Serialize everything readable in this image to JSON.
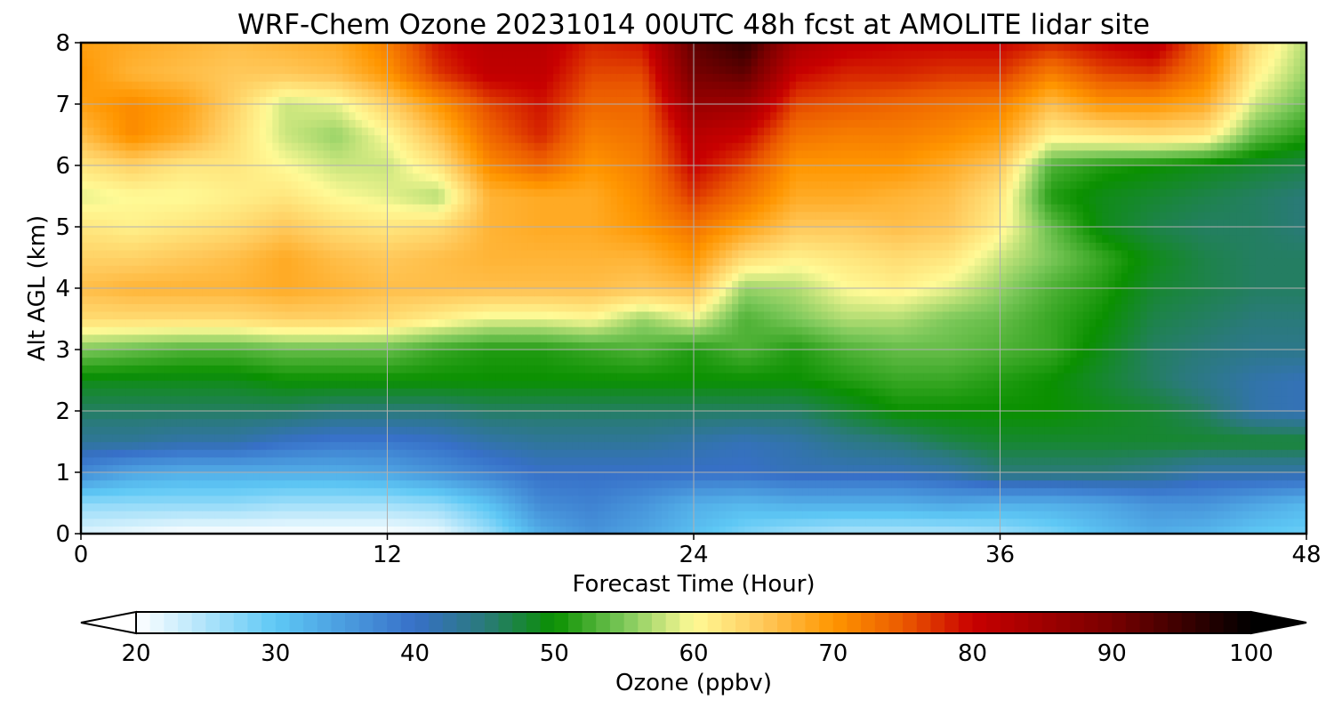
{
  "chart_data": {
    "type": "heatmap",
    "title": "WRF-Chem Ozone  20231014 00UTC 48h fcst at AMOLITE lidar site",
    "xlabel": "Forecast Time (Hour)",
    "ylabel": "Alt AGL (km)",
    "xlim": [
      0,
      48
    ],
    "ylim": [
      0,
      8
    ],
    "x_ticks": [
      0,
      12,
      24,
      36,
      48
    ],
    "y_ticks": [
      0,
      1,
      2,
      3,
      4,
      5,
      6,
      7,
      8
    ],
    "grid": true,
    "x_hours": [
      0,
      2,
      4,
      6,
      8,
      10,
      12,
      14,
      16,
      18,
      20,
      22,
      24,
      26,
      28,
      30,
      32,
      34,
      36,
      38,
      40,
      42,
      44,
      46,
      48
    ],
    "alt_km": [
      0,
      0.5,
      1,
      1.5,
      2,
      2.5,
      3,
      3.5,
      4,
      4.5,
      5,
      5.5,
      6,
      6.5,
      7,
      7.5,
      8
    ],
    "ozone_ppbv": [
      [
        22,
        21,
        20,
        20,
        20,
        20,
        20,
        21,
        26,
        33,
        36,
        34,
        31,
        28,
        26,
        25,
        25,
        25,
        26,
        28,
        31,
        33,
        32,
        30,
        29
      ],
      [
        27,
        27,
        27,
        27,
        26,
        26,
        26,
        27,
        31,
        37,
        38,
        36,
        33,
        32,
        33,
        33,
        33,
        34,
        33,
        33,
        34,
        36,
        36,
        34,
        32
      ],
      [
        37,
        34,
        33,
        33,
        33,
        33,
        34,
        36,
        38,
        40,
        40,
        40,
        40,
        40,
        41,
        41,
        41,
        42,
        45,
        45,
        45,
        44,
        42,
        42,
        42
      ],
      [
        43,
        43,
        42,
        42,
        40,
        39,
        39,
        40,
        42,
        43,
        43,
        43,
        42,
        41,
        42,
        44,
        45,
        47,
        48,
        48,
        48,
        48,
        48,
        48,
        48
      ],
      [
        46,
        46,
        46,
        46,
        46,
        45,
        45,
        45,
        46,
        46,
        46,
        46,
        46,
        46,
        46,
        48,
        50,
        50,
        50,
        50,
        49,
        48,
        46,
        42,
        41
      ],
      [
        49,
        49,
        49,
        49,
        50,
        50,
        50,
        50,
        50,
        50,
        50,
        50,
        50,
        50,
        50,
        51,
        52,
        52,
        51,
        50,
        48,
        46,
        44,
        42,
        41
      ],
      [
        55,
        54,
        53,
        53,
        54,
        54,
        54,
        52,
        51,
        51,
        52,
        53,
        51,
        53,
        51,
        53,
        54,
        54,
        53,
        52,
        49,
        46,
        45,
        44,
        44
      ],
      [
        63,
        63,
        63,
        63,
        64,
        64,
        63,
        61,
        59,
        59,
        60,
        56,
        59,
        53,
        55,
        57,
        57,
        55,
        54,
        52,
        50,
        47,
        46,
        45,
        45
      ],
      [
        66,
        67,
        67,
        67,
        68,
        67,
        66,
        66,
        66,
        66,
        66,
        65,
        66,
        56,
        57,
        60,
        61,
        59,
        56,
        53,
        51,
        48,
        47,
        46,
        46
      ],
      [
        64,
        64,
        65,
        66,
        68,
        66,
        65,
        66,
        67,
        67,
        67,
        67,
        70,
        63,
        61,
        62,
        63,
        62,
        58,
        55,
        52,
        49,
        47,
        46,
        46
      ],
      [
        62,
        61,
        62,
        63,
        65,
        63,
        62,
        63,
        67,
        68,
        68,
        70,
        73,
        69,
        65,
        65,
        66,
        65,
        61,
        54,
        49,
        47,
        46,
        46,
        45
      ],
      [
        59,
        60,
        60,
        61,
        62,
        60,
        59,
        57,
        67,
        68,
        68,
        71,
        77,
        73,
        68,
        68,
        67,
        66,
        62,
        51,
        49,
        48,
        47,
        46,
        45
      ],
      [
        62,
        64,
        62,
        62,
        60,
        58,
        58,
        62,
        71,
        74,
        70,
        72,
        80,
        76,
        70,
        70,
        70,
        68,
        65,
        53,
        51,
        50,
        49,
        48,
        47
      ],
      [
        66,
        71,
        68,
        63,
        58,
        56,
        60,
        66,
        74,
        78,
        72,
        73,
        82,
        80,
        73,
        72,
        72,
        71,
        69,
        61,
        62,
        63,
        62,
        54,
        51
      ],
      [
        69,
        71,
        69,
        64,
        58,
        59,
        64,
        70,
        76,
        79,
        74,
        74,
        86,
        85,
        76,
        75,
        74,
        73,
        72,
        66,
        70,
        70,
        68,
        58,
        54
      ],
      [
        70,
        67,
        66,
        65,
        65,
        66,
        70,
        77,
        81,
        81,
        76,
        76,
        90,
        92,
        80,
        78,
        78,
        77,
        77,
        72,
        76,
        77,
        72,
        61,
        56
      ],
      [
        69,
        68,
        67,
        66,
        67,
        68,
        72,
        79,
        82,
        82,
        78,
        79,
        92,
        96,
        84,
        81,
        80,
        80,
        80,
        78,
        80,
        82,
        74,
        63,
        57
      ]
    ],
    "colorbar": {
      "label": "Ozone  (ppbv)",
      "min": 20,
      "max": 100,
      "ticks": [
        20,
        30,
        40,
        50,
        60,
        70,
        80,
        90,
        100
      ],
      "extend": "both",
      "colormap_stops": [
        [
          20,
          "#ffffff"
        ],
        [
          30,
          "#5ec8f5"
        ],
        [
          40,
          "#3770c8"
        ],
        [
          45,
          "#2a7a7a"
        ],
        [
          50,
          "#0a9000"
        ],
        [
          55,
          "#7cc85a"
        ],
        [
          60,
          "#fffa96"
        ],
        [
          65,
          "#ffc85a"
        ],
        [
          70,
          "#ff9600"
        ],
        [
          75,
          "#eb5a00"
        ],
        [
          80,
          "#c80000"
        ],
        [
          90,
          "#780000"
        ],
        [
          100,
          "#000000"
        ]
      ]
    }
  }
}
